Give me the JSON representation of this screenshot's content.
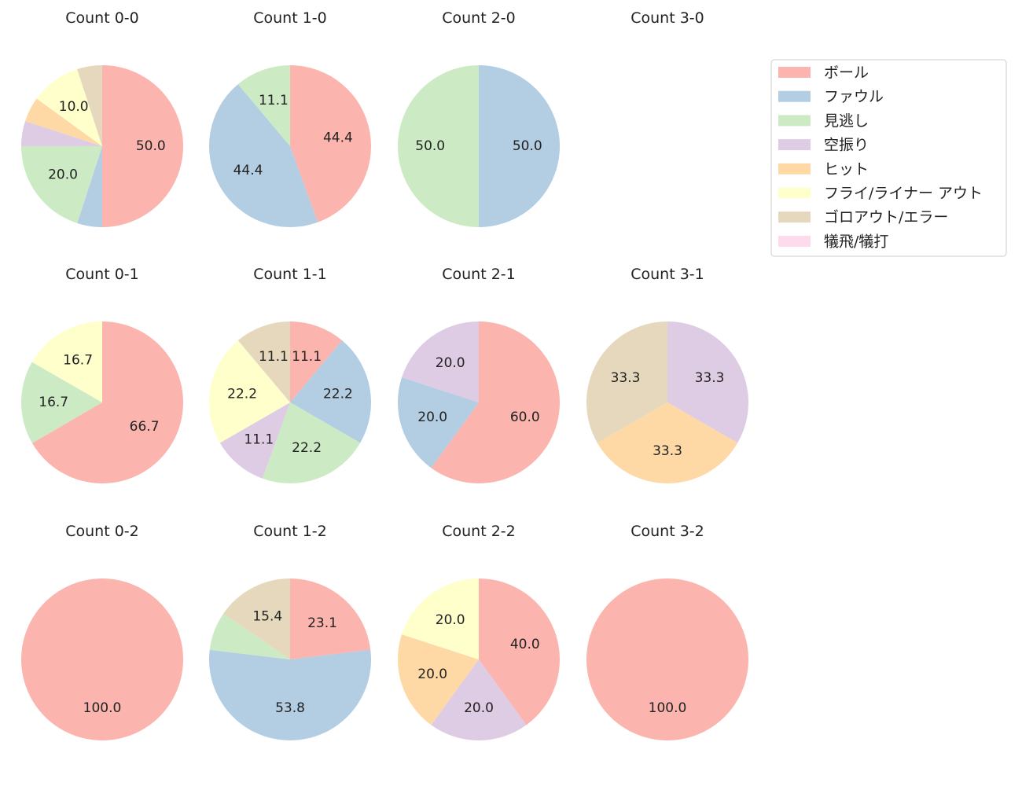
{
  "legend": {
    "categories": [
      {
        "name": "ボール",
        "color": "#fbb4ae"
      },
      {
        "name": "ファウル",
        "color": "#b3cde3"
      },
      {
        "name": "見逃し",
        "color": "#ccebc5"
      },
      {
        "name": "空振り",
        "color": "#decbe4"
      },
      {
        "name": "ヒット",
        "color": "#fed9a6"
      },
      {
        "name": "フライ/ライナー アウト",
        "color": "#ffffcc"
      },
      {
        "name": "ゴロアウト/エラー",
        "color": "#e5d8bd"
      },
      {
        "name": "犠飛/犠打",
        "color": "#fddaec"
      }
    ]
  },
  "chart_data": [
    {
      "type": "pie",
      "title": "Count 0-0",
      "values": [
        50.0,
        5.0,
        20.0,
        5.0,
        5.0,
        10.0,
        5.0,
        0
      ],
      "labels": [
        "50.0",
        "",
        "20.0",
        "",
        "",
        "10.0",
        "",
        ""
      ]
    },
    {
      "type": "pie",
      "title": "Count 1-0",
      "values": [
        44.4,
        44.4,
        11.1,
        0,
        0,
        0,
        0,
        0
      ],
      "labels": [
        "44.4",
        "44.4",
        "11.1",
        "",
        "",
        "",
        "",
        ""
      ]
    },
    {
      "type": "pie",
      "title": "Count 2-0",
      "values": [
        0,
        50.0,
        50.0,
        0,
        0,
        0,
        0,
        0
      ],
      "labels": [
        "",
        "50.0",
        "50.0",
        "",
        "",
        "",
        "",
        ""
      ]
    },
    {
      "type": "pie",
      "title": "Count 3-0",
      "values": [
        0,
        0,
        0,
        0,
        0,
        0,
        0,
        0
      ],
      "labels": [
        "",
        "",
        "",
        "",
        "",
        "",
        "",
        ""
      ]
    },
    {
      "type": "pie",
      "title": "Count 0-1",
      "values": [
        66.7,
        0,
        16.7,
        0,
        0,
        16.7,
        0,
        0
      ],
      "labels": [
        "66.7",
        "",
        "16.7",
        "",
        "",
        "16.7",
        "",
        ""
      ]
    },
    {
      "type": "pie",
      "title": "Count 1-1",
      "values": [
        11.1,
        22.2,
        22.2,
        11.1,
        0,
        22.2,
        11.1,
        0
      ],
      "labels": [
        "11.1",
        "22.2",
        "22.2",
        "11.1",
        "",
        "22.2",
        "11.1",
        ""
      ]
    },
    {
      "type": "pie",
      "title": "Count 2-1",
      "values": [
        60.0,
        20.0,
        0,
        20.0,
        0,
        0,
        0,
        0
      ],
      "labels": [
        "60.0",
        "20.0",
        "",
        "20.0",
        "",
        "",
        "",
        ""
      ]
    },
    {
      "type": "pie",
      "title": "Count 3-1",
      "values": [
        0,
        0,
        0,
        33.3,
        33.3,
        0,
        33.3,
        0
      ],
      "labels": [
        "",
        "",
        "",
        "33.3",
        "33.3",
        "",
        "33.3",
        ""
      ]
    },
    {
      "type": "pie",
      "title": "Count 0-2",
      "values": [
        100.0,
        0,
        0,
        0,
        0,
        0,
        0,
        0
      ],
      "labels": [
        "100.0",
        "",
        "",
        "",
        "",
        "",
        "",
        ""
      ]
    },
    {
      "type": "pie",
      "title": "Count 1-2",
      "values": [
        23.1,
        53.8,
        7.7,
        0,
        0,
        0,
        15.4,
        0
      ],
      "labels": [
        "23.1",
        "53.8",
        "",
        "",
        "",
        "",
        "15.4",
        ""
      ]
    },
    {
      "type": "pie",
      "title": "Count 2-2",
      "values": [
        40.0,
        0,
        0,
        20.0,
        20.0,
        20.0,
        0,
        0
      ],
      "labels": [
        "40.0",
        "",
        "",
        "20.0",
        "20.0",
        "20.0",
        "",
        ""
      ]
    },
    {
      "type": "pie",
      "title": "Count 3-2",
      "values": [
        100.0,
        0,
        0,
        0,
        0,
        0,
        0,
        0
      ],
      "labels": [
        "100.0",
        "",
        "",
        "",
        "",
        "",
        "",
        ""
      ]
    }
  ]
}
